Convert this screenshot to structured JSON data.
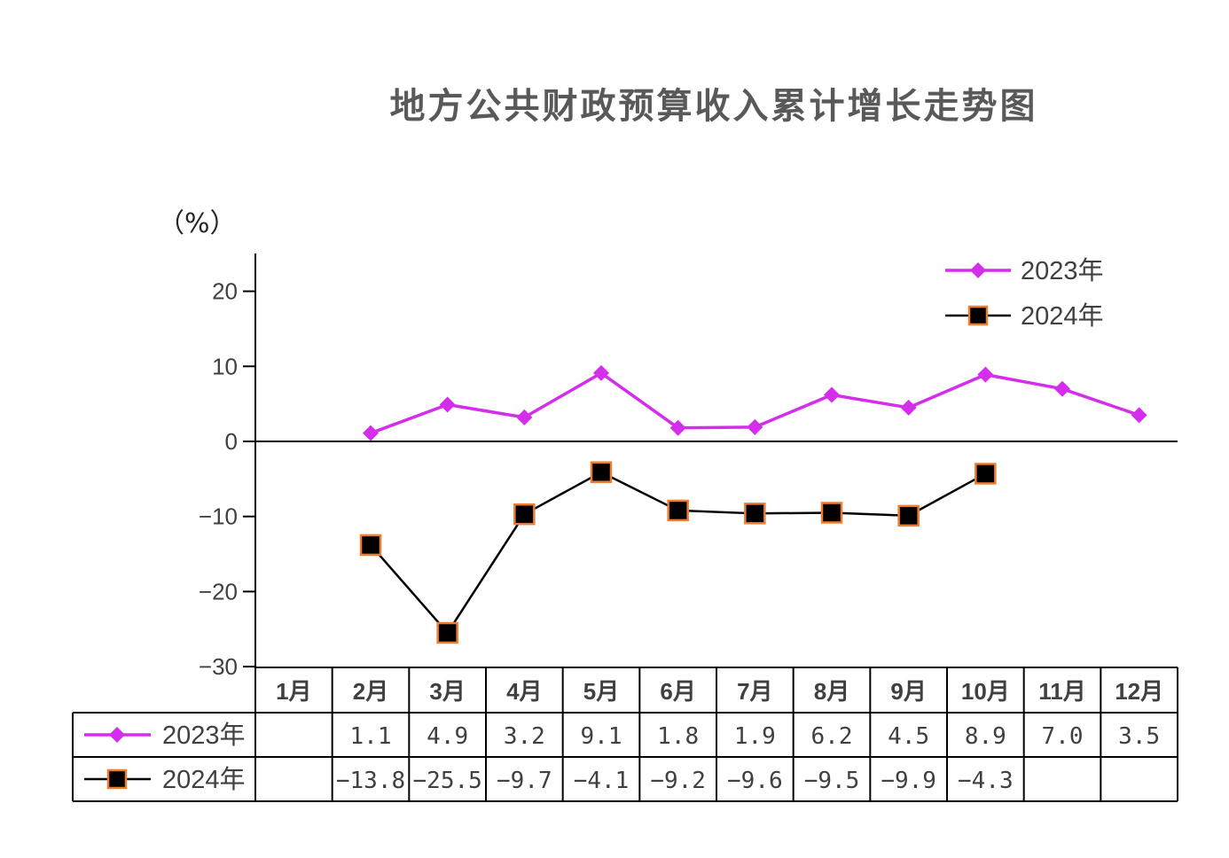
{
  "chart_data": {
    "type": "line",
    "title": "地方公共财政预算收入累计增长走势图",
    "ylabel": "（%）",
    "ylim": [
      -30,
      25
    ],
    "yticks": [
      20,
      10,
      0,
      -10,
      -20,
      -30
    ],
    "ytick_labels": [
      "20",
      "10",
      "0",
      "−10",
      "−20",
      "−30"
    ],
    "categories": [
      "1月",
      "2月",
      "3月",
      "4月",
      "5月",
      "6月",
      "7月",
      "8月",
      "9月",
      "10月",
      "11月",
      "12月"
    ],
    "legend_position": "top-right",
    "grid": false,
    "series": [
      {
        "name": "2023年",
        "color": "#D42DEB",
        "marker": "diamond",
        "values": [
          null,
          1.1,
          4.9,
          3.2,
          9.1,
          1.8,
          1.9,
          6.2,
          4.5,
          8.9,
          7.0,
          3.5
        ],
        "labels": [
          "",
          "1.1",
          "4.9",
          "3.2",
          "9.1",
          "1.8",
          "1.9",
          "6.2",
          "4.5",
          "8.9",
          "7.0",
          "3.5"
        ]
      },
      {
        "name": "2024年",
        "color": "#000000",
        "marker": "square",
        "marker_edge_color": "#ED7D31",
        "values": [
          null,
          -13.8,
          -25.5,
          -9.7,
          -4.1,
          -9.2,
          -9.6,
          -9.5,
          -9.9,
          -4.3,
          null,
          null
        ],
        "labels": [
          "",
          "−13.8",
          "−25.5",
          "−9.7",
          "−4.1",
          "−9.2",
          "−9.6",
          "−9.5",
          "−9.9",
          "−4.3",
          "",
          ""
        ]
      }
    ]
  }
}
